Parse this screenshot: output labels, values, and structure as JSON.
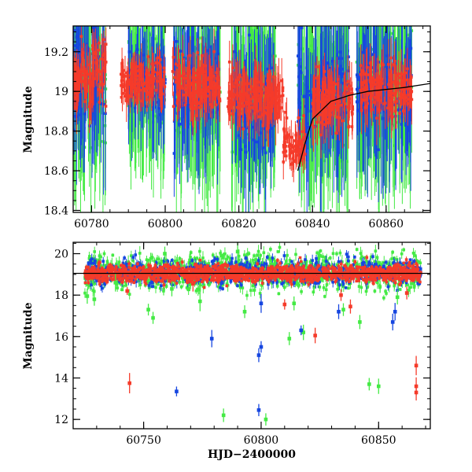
{
  "colors": {
    "blue": "#1646e0",
    "green": "#44ea44",
    "red": "#f53b2a",
    "axis": "#000000",
    "model": "#000000"
  },
  "chart_data": [
    {
      "type": "scatter",
      "title": "",
      "xlabel": "",
      "ylabel": "Magnitude",
      "xlim": [
        60775,
        60872
      ],
      "ylim": [
        19.33,
        18.39
      ],
      "y_inverted": true,
      "xticks": [
        "60780",
        "60800",
        "60820",
        "60840",
        "60860"
      ],
      "yticks": [
        "18.4",
        "18.6",
        "18.8",
        "19",
        "19.2"
      ],
      "xtick_values": [
        60780,
        60800,
        60820,
        60840,
        60860
      ],
      "ytick_values": [
        18.4,
        18.6,
        18.8,
        19.0,
        19.2
      ],
      "error_bars": true,
      "series": [
        {
          "color": "green",
          "clusters": [
            [
              60775,
              60784,
              19.08,
              0.15,
              0.45
            ],
            [
              60790,
              60800,
              19.05,
              0.1,
              0.4
            ],
            [
              60802,
              60815,
              19.02,
              0.12,
              0.45
            ],
            [
              60818,
              60830,
              18.95,
              0.12,
              0.45
            ],
            [
              60836,
              60850,
              18.98,
              0.12,
              0.45
            ],
            [
              60852,
              60867,
              19.02,
              0.12,
              0.45
            ]
          ]
        },
        {
          "color": "blue",
          "clusters": [
            [
              60775,
              60784,
              19.08,
              0.12,
              0.4
            ],
            [
              60790,
              60800,
              19.05,
              0.08,
              0.3
            ],
            [
              60802,
              60815,
              19.02,
              0.1,
              0.35
            ],
            [
              60818,
              60830,
              18.95,
              0.1,
              0.35
            ],
            [
              60836,
              60850,
              18.98,
              0.1,
              0.4
            ],
            [
              60852,
              60867,
              19.02,
              0.1,
              0.4
            ]
          ]
        },
        {
          "color": "red",
          "clusters": [
            [
              60775,
              60784,
              19.06,
              0.08,
              0.12
            ],
            [
              60788,
              60800,
              19.05,
              0.05,
              0.1
            ],
            [
              60802,
              60815,
              19.03,
              0.06,
              0.12
            ],
            [
              60817,
              60832,
              18.97,
              0.06,
              0.12
            ],
            [
              60832,
              60838,
              18.72,
              0.06,
              0.1
            ],
            [
              60840,
              60851,
              18.95,
              0.06,
              0.12
            ],
            [
              60853,
              60867,
              19.02,
              0.06,
              0.12
            ]
          ]
        }
      ],
      "model_curve": {
        "x": [
          60836,
          60838,
          60840,
          60845,
          60850,
          60855,
          60860,
          60865,
          60872
        ],
        "y": [
          18.6,
          18.74,
          18.86,
          18.95,
          18.98,
          19.0,
          19.01,
          19.02,
          19.04
        ]
      }
    },
    {
      "type": "scatter",
      "title": "",
      "xlabel": "HJD−2400000",
      "ylabel": "Magnitude",
      "xlim": [
        60720,
        60872
      ],
      "ylim": [
        20.55,
        11.55
      ],
      "y_inverted": true,
      "xticks": [
        "60750",
        "60800",
        "60850"
      ],
      "yticks": [
        "12",
        "14",
        "16",
        "18",
        "20"
      ],
      "xtick_values": [
        60750,
        60800,
        60850
      ],
      "ytick_values": [
        12,
        14,
        16,
        18,
        20
      ],
      "error_bars": true,
      "series": [
        {
          "color": "green",
          "clusters": [
            [
              60725,
              60868,
              19.1,
              0.4,
              0.3
            ]
          ]
        },
        {
          "color": "blue",
          "clusters": [
            [
              60725,
              60868,
              19.1,
              0.3,
              0.25
            ]
          ]
        },
        {
          "color": "red",
          "clusters": [
            [
              60725,
              60868,
              19.05,
              0.2,
              0.15
            ]
          ]
        }
      ],
      "outliers": [
        {
          "color": "green",
          "x": 60726,
          "y": 17.95
        },
        {
          "color": "green",
          "x": 60729,
          "y": 17.8
        },
        {
          "color": "green",
          "x": 60738,
          "y": 18.6
        },
        {
          "color": "green",
          "x": 60752,
          "y": 17.3
        },
        {
          "color": "green",
          "x": 60754,
          "y": 16.9
        },
        {
          "color": "green",
          "x": 60762,
          "y": 18.3
        },
        {
          "color": "green",
          "x": 60774,
          "y": 17.7
        },
        {
          "color": "green",
          "x": 60784,
          "y": 12.2
        },
        {
          "color": "green",
          "x": 60793,
          "y": 17.2
        },
        {
          "color": "green",
          "x": 60802,
          "y": 12.0
        },
        {
          "color": "green",
          "x": 60812,
          "y": 15.9
        },
        {
          "color": "green",
          "x": 60814,
          "y": 17.6
        },
        {
          "color": "green",
          "x": 60818,
          "y": 16.2
        },
        {
          "color": "green",
          "x": 60835,
          "y": 17.3
        },
        {
          "color": "green",
          "x": 60842,
          "y": 16.7
        },
        {
          "color": "green",
          "x": 60846,
          "y": 13.7
        },
        {
          "color": "green",
          "x": 60850,
          "y": 13.6
        },
        {
          "color": "green",
          "x": 60858,
          "y": 17.9
        },
        {
          "color": "green",
          "x": 60759,
          "y": 20.0
        },
        {
          "color": "green",
          "x": 60790,
          "y": 20.1
        },
        {
          "color": "green",
          "x": 60825,
          "y": 19.9
        },
        {
          "color": "blue",
          "x": 60764,
          "y": 13.35
        },
        {
          "color": "blue",
          "x": 60779,
          "y": 15.9
        },
        {
          "color": "blue",
          "x": 60799,
          "y": 12.45
        },
        {
          "color": "blue",
          "x": 60799,
          "y": 15.1
        },
        {
          "color": "blue",
          "x": 60800,
          "y": 15.5
        },
        {
          "color": "blue",
          "x": 60800,
          "y": 17.6
        },
        {
          "color": "blue",
          "x": 60817,
          "y": 16.3
        },
        {
          "color": "blue",
          "x": 60833,
          "y": 17.2
        },
        {
          "color": "blue",
          "x": 60856,
          "y": 16.7
        },
        {
          "color": "blue",
          "x": 60857,
          "y": 17.2
        },
        {
          "color": "red",
          "x": 60744,
          "y": 13.75
        },
        {
          "color": "red",
          "x": 60743,
          "y": 18.2
        },
        {
          "color": "red",
          "x": 60771,
          "y": 18.55
        },
        {
          "color": "red",
          "x": 60810,
          "y": 17.55
        },
        {
          "color": "red",
          "x": 60823,
          "y": 16.05
        },
        {
          "color": "red",
          "x": 60834,
          "y": 18.0
        },
        {
          "color": "red",
          "x": 60838,
          "y": 17.45
        },
        {
          "color": "red",
          "x": 60866,
          "y": 13.3
        },
        {
          "color": "red",
          "x": 60866,
          "y": 13.6
        },
        {
          "color": "red",
          "x": 60866,
          "y": 14.6
        },
        {
          "color": "red",
          "x": 60862,
          "y": 18.1
        }
      ],
      "model_curve": {
        "x": [
          60720,
          60872
        ],
        "y": [
          19.05,
          19.05
        ]
      }
    }
  ]
}
